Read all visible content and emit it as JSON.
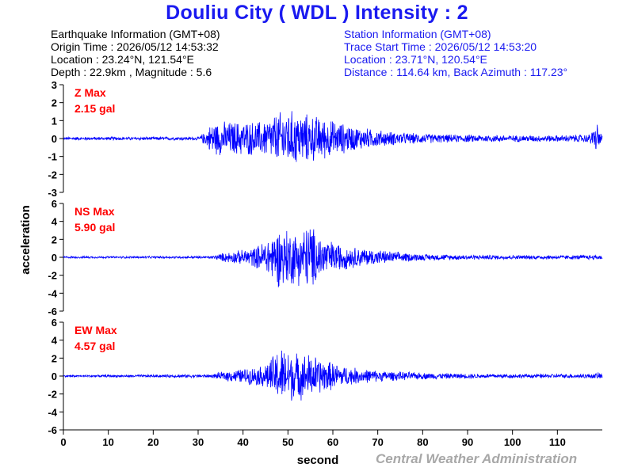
{
  "title": "Douliu City ( WDL ) Intensity : 2",
  "earthquake": {
    "heading": "Earthquake Information  (GMT+08)",
    "origin_time": "Origin Time : 2026/05/12 14:53:32",
    "location": "Location : 23.24°N, 121.54°E",
    "depth_mag": "Depth : 22.9km , Magnitude : 5.6"
  },
  "station": {
    "heading": "Station Information  (GMT+08)",
    "trace_start": "Trace Start Time : 2026/05/12 14:53:20",
    "location": "Location : 23.71°N, 120.54°E",
    "distance": "Distance : 114.64 km, Back Azimuth : 117.23°"
  },
  "credit": "Central Weather Administration",
  "chart_data": {
    "type": "line",
    "xlabel": "second",
    "ylabel": "acceleration",
    "xlim": [
      0,
      120
    ],
    "x_ticks": [
      0,
      10,
      20,
      30,
      40,
      50,
      60,
      70,
      80,
      90,
      100,
      110
    ],
    "line_color": "#0000ff",
    "label_color": "#ff0000",
    "panels": [
      {
        "component": "Z",
        "label": "Z Max",
        "max_text": "2.15 gal",
        "max_value": 2.15,
        "ylim": [
          -3,
          3
        ],
        "y_ticks": [
          3,
          2,
          1,
          0,
          -1,
          -2,
          -3
        ],
        "envelope": [
          [
            0,
            0.1
          ],
          [
            30,
            0.1
          ],
          [
            32,
            0.5
          ],
          [
            33,
            1.0
          ],
          [
            38,
            1.05
          ],
          [
            44,
            1.05
          ],
          [
            46,
            1.3
          ],
          [
            48,
            1.6
          ],
          [
            50,
            1.75
          ],
          [
            52,
            1.6
          ],
          [
            56,
            1.4
          ],
          [
            60,
            1.1
          ],
          [
            64,
            0.8
          ],
          [
            68,
            0.6
          ],
          [
            72,
            0.45
          ],
          [
            76,
            0.35
          ],
          [
            85,
            0.25
          ],
          [
            100,
            0.2
          ],
          [
            110,
            0.2
          ],
          [
            117,
            0.25
          ],
          [
            118.5,
            0.75
          ],
          [
            119,
            1.0
          ],
          [
            119.5,
            0.4
          ],
          [
            120,
            0.2
          ]
        ]
      },
      {
        "component": "NS",
        "label": "NS Max",
        "max_text": "5.90 gal",
        "max_value": 5.9,
        "ylim": [
          -6,
          6
        ],
        "y_ticks": [
          6,
          4,
          2,
          0,
          -2,
          -4,
          -6
        ],
        "envelope": [
          [
            0,
            0.12
          ],
          [
            33,
            0.15
          ],
          [
            36,
            0.6
          ],
          [
            40,
            0.9
          ],
          [
            43,
            1.3
          ],
          [
            46,
            2.6
          ],
          [
            48,
            3.6
          ],
          [
            50,
            3.5
          ],
          [
            52,
            3.2
          ],
          [
            54,
            3.8
          ],
          [
            55,
            4.5
          ],
          [
            56,
            3.2
          ],
          [
            58,
            2.4
          ],
          [
            60,
            1.9
          ],
          [
            64,
            1.3
          ],
          [
            70,
            0.9
          ],
          [
            75,
            0.6
          ],
          [
            80,
            0.4
          ],
          [
            90,
            0.3
          ],
          [
            100,
            0.25
          ],
          [
            110,
            0.25
          ],
          [
            120,
            0.3
          ]
        ]
      },
      {
        "component": "EW",
        "label": "EW Max",
        "max_text": "4.57 gal",
        "max_value": 4.57,
        "ylim": [
          -6,
          6
        ],
        "y_ticks": [
          6,
          4,
          2,
          0,
          -2,
          -4,
          -6
        ],
        "envelope": [
          [
            0,
            0.12
          ],
          [
            33,
            0.2
          ],
          [
            36,
            0.6
          ],
          [
            40,
            0.9
          ],
          [
            44,
            1.2
          ],
          [
            46,
            2.0
          ],
          [
            48,
            3.5
          ],
          [
            50,
            3.3
          ],
          [
            52,
            2.8
          ],
          [
            55,
            2.7
          ],
          [
            58,
            2.0
          ],
          [
            62,
            1.3
          ],
          [
            66,
            0.9
          ],
          [
            72,
            0.6
          ],
          [
            80,
            0.4
          ],
          [
            90,
            0.3
          ],
          [
            100,
            0.25
          ],
          [
            110,
            0.25
          ],
          [
            118,
            0.3
          ],
          [
            120,
            0.5
          ]
        ]
      }
    ]
  }
}
